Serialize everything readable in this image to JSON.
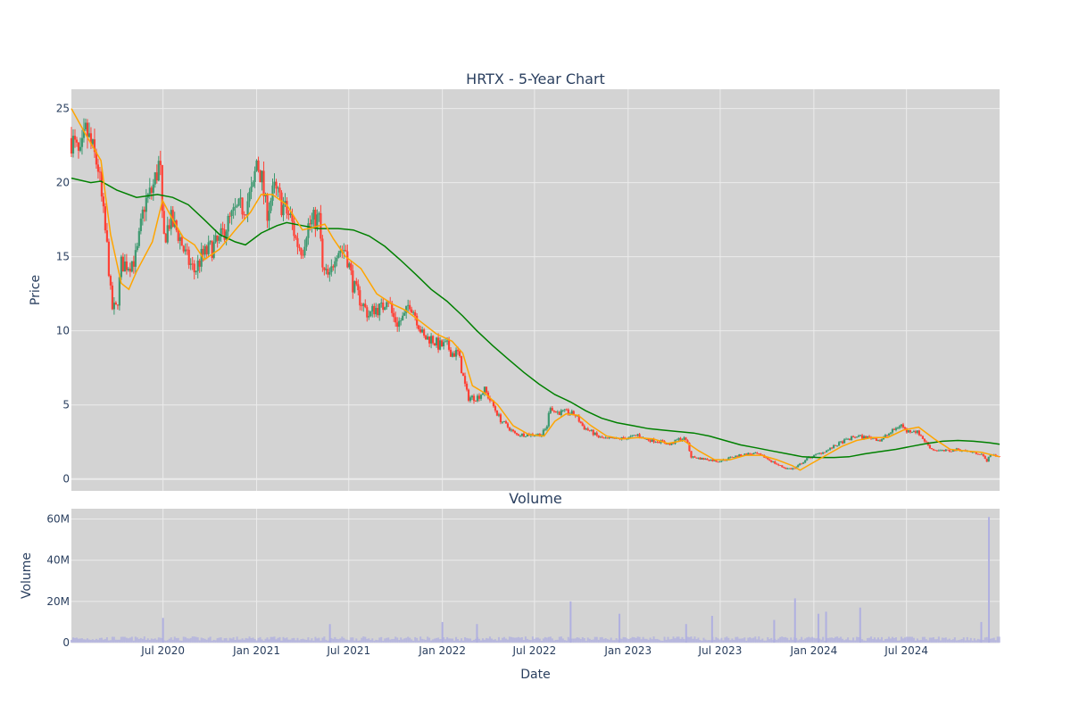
{
  "title": "HRTX - 5-Year Chart",
  "volume_title": "Volume",
  "colors": {
    "plot_bg": "#d3d3d3",
    "grid": "#ebebeb",
    "up": "#3d9970",
    "down": "#ff4136",
    "ma_short": "#ffa500",
    "ma_long": "#008000",
    "volume": "#b0b0e0",
    "text": "#2a3f5f"
  },
  "chart_data": [
    {
      "type": "candlestick",
      "title": "HRTX - 5-Year Chart",
      "ylabel": "Price",
      "ylim": [
        -0.8,
        26.3
      ],
      "yticks": [
        0,
        5,
        10,
        15,
        20,
        25
      ],
      "xlim": [
        "2020-01-03",
        "2024-12-31"
      ],
      "grid": true,
      "legend": "none",
      "price_path": [
        [
          "2020-01-03",
          23.0
        ],
        [
          "2020-01-20",
          21.5
        ],
        [
          "2020-02-01",
          23.5
        ],
        [
          "2020-02-15",
          22.0
        ],
        [
          "2020-02-25",
          21.0
        ],
        [
          "2020-03-05",
          18.0
        ],
        [
          "2020-03-15",
          15.0
        ],
        [
          "2020-03-22",
          11.5
        ],
        [
          "2020-04-01",
          11.5
        ],
        [
          "2020-04-10",
          14.5
        ],
        [
          "2020-04-25",
          14.5
        ],
        [
          "2020-05-10",
          15.0
        ],
        [
          "2020-05-25",
          18.5
        ],
        [
          "2020-06-10",
          19.5
        ],
        [
          "2020-06-25",
          21.5
        ],
        [
          "2020-07-01",
          16.0
        ],
        [
          "2020-07-15",
          17.5
        ],
        [
          "2020-08-01",
          16.5
        ],
        [
          "2020-08-15",
          15.0
        ],
        [
          "2020-09-01",
          14.0
        ],
        [
          "2020-09-15",
          15.0
        ],
        [
          "2020-10-01",
          15.5
        ],
        [
          "2020-10-20",
          16.0
        ],
        [
          "2020-11-01",
          17.0
        ],
        [
          "2020-11-20",
          18.0
        ],
        [
          "2020-12-10",
          18.5
        ],
        [
          "2020-12-25",
          19.5
        ],
        [
          "2021-01-01",
          21.5
        ],
        [
          "2021-01-10",
          20.5
        ],
        [
          "2021-01-20",
          18.0
        ],
        [
          "2021-02-05",
          19.5
        ],
        [
          "2021-02-20",
          18.5
        ],
        [
          "2021-03-10",
          17.5
        ],
        [
          "2021-03-20",
          16.0
        ],
        [
          "2021-04-01",
          15.5
        ],
        [
          "2021-04-10",
          17.0
        ],
        [
          "2021-04-25",
          17.5
        ],
        [
          "2021-05-05",
          17.5
        ],
        [
          "2021-05-10",
          14.0
        ],
        [
          "2021-05-25",
          13.5
        ],
        [
          "2021-06-05",
          15.5
        ],
        [
          "2021-06-25",
          15.5
        ],
        [
          "2021-07-10",
          13.0
        ],
        [
          "2021-07-25",
          12.0
        ],
        [
          "2021-08-10",
          11.0
        ],
        [
          "2021-08-20",
          11.5
        ],
        [
          "2021-09-05",
          11.5
        ],
        [
          "2021-09-15",
          12.5
        ],
        [
          "2021-09-25",
          11.0
        ],
        [
          "2021-10-05",
          10.5
        ],
        [
          "2021-10-20",
          11.0
        ],
        [
          "2021-10-28",
          12.0
        ],
        [
          "2021-11-10",
          11.0
        ],
        [
          "2021-11-25",
          9.5
        ],
        [
          "2021-12-10",
          9.5
        ],
        [
          "2021-12-25",
          9.0
        ],
        [
          "2022-01-10",
          9.0
        ],
        [
          "2022-01-20",
          8.5
        ],
        [
          "2022-02-01",
          8.5
        ],
        [
          "2022-02-10",
          7.0
        ],
        [
          "2022-02-20",
          5.5
        ],
        [
          "2022-03-10",
          5.5
        ],
        [
          "2022-03-25",
          6.0
        ],
        [
          "2022-04-10",
          5.0
        ],
        [
          "2022-04-25",
          4.0
        ],
        [
          "2022-05-10",
          3.5
        ],
        [
          "2022-05-25",
          3.0
        ],
        [
          "2022-06-10",
          3.0
        ],
        [
          "2022-06-25",
          3.0
        ],
        [
          "2022-07-05",
          3.0
        ],
        [
          "2022-07-15",
          3.0
        ],
        [
          "2022-07-25",
          3.5
        ],
        [
          "2022-08-01",
          5.0
        ],
        [
          "2022-08-10",
          4.5
        ],
        [
          "2022-08-20",
          4.5
        ],
        [
          "2022-09-05",
          4.5
        ],
        [
          "2022-09-20",
          4.3
        ],
        [
          "2022-10-05",
          3.5
        ],
        [
          "2022-10-20",
          3.2
        ],
        [
          "2022-11-05",
          2.8
        ],
        [
          "2022-11-20",
          2.7
        ],
        [
          "2022-12-10",
          2.7
        ],
        [
          "2023-01-05",
          2.8
        ],
        [
          "2023-01-20",
          3.0
        ],
        [
          "2023-02-01",
          2.7
        ],
        [
          "2023-02-20",
          2.6
        ],
        [
          "2023-03-10",
          2.5
        ],
        [
          "2023-03-25",
          2.3
        ],
        [
          "2023-04-10",
          2.7
        ],
        [
          "2023-04-25",
          2.7
        ],
        [
          "2023-05-05",
          1.5
        ],
        [
          "2023-05-20",
          1.4
        ],
        [
          "2023-06-10",
          1.3
        ],
        [
          "2023-06-25",
          1.2
        ],
        [
          "2023-07-10",
          1.3
        ],
        [
          "2023-07-25",
          1.5
        ],
        [
          "2023-08-10",
          1.6
        ],
        [
          "2023-08-25",
          1.7
        ],
        [
          "2023-09-10",
          1.7
        ],
        [
          "2023-09-25",
          1.5
        ],
        [
          "2023-10-10",
          1.2
        ],
        [
          "2023-10-25",
          0.9
        ],
        [
          "2023-11-10",
          0.7
        ],
        [
          "2023-11-25",
          0.7
        ],
        [
          "2023-12-05",
          1.0
        ],
        [
          "2023-12-20",
          1.4
        ],
        [
          "2024-01-10",
          1.7
        ],
        [
          "2024-01-25",
          1.9
        ],
        [
          "2024-02-10",
          2.2
        ],
        [
          "2024-02-25",
          2.5
        ],
        [
          "2024-03-10",
          2.7
        ],
        [
          "2024-03-25",
          2.9
        ],
        [
          "2024-04-10",
          2.8
        ],
        [
          "2024-04-25",
          2.8
        ],
        [
          "2024-05-10",
          2.6
        ],
        [
          "2024-05-25",
          3.0
        ],
        [
          "2024-06-10",
          3.4
        ],
        [
          "2024-06-20",
          3.7
        ],
        [
          "2024-07-01",
          3.2
        ],
        [
          "2024-07-15",
          3.3
        ],
        [
          "2024-07-25",
          3.1
        ],
        [
          "2024-08-05",
          2.6
        ],
        [
          "2024-08-20",
          2.0
        ],
        [
          "2024-09-05",
          1.9
        ],
        [
          "2024-09-25",
          1.9
        ],
        [
          "2024-10-10",
          2.0
        ],
        [
          "2024-10-25",
          1.9
        ],
        [
          "2024-11-10",
          1.8
        ],
        [
          "2024-11-25",
          1.7
        ],
        [
          "2024-12-05",
          1.2
        ],
        [
          "2024-12-15",
          1.7
        ],
        [
          "2024-12-31",
          1.5
        ]
      ],
      "ma_short": {
        "color": "#ffa500",
        "points": [
          [
            "2020-01-03",
            25.0
          ],
          [
            "2020-02-01",
            23.2
          ],
          [
            "2020-03-01",
            21.5
          ],
          [
            "2020-03-20",
            16.5
          ],
          [
            "2020-04-10",
            13.2
          ],
          [
            "2020-04-25",
            12.8
          ],
          [
            "2020-05-10",
            14.0
          ],
          [
            "2020-06-10",
            16.0
          ],
          [
            "2020-06-30",
            18.8
          ],
          [
            "2020-07-20",
            17.5
          ],
          [
            "2020-08-10",
            16.3
          ],
          [
            "2020-09-01",
            15.8
          ],
          [
            "2020-09-20",
            14.8
          ],
          [
            "2020-10-20",
            15.5
          ],
          [
            "2020-11-20",
            16.8
          ],
          [
            "2020-12-20",
            18.0
          ],
          [
            "2021-01-10",
            19.2
          ],
          [
            "2021-02-01",
            19.2
          ],
          [
            "2021-03-01",
            18.5
          ],
          [
            "2021-04-01",
            16.8
          ],
          [
            "2021-04-25",
            17.0
          ],
          [
            "2021-05-15",
            17.2
          ],
          [
            "2021-06-01",
            16.2
          ],
          [
            "2021-06-25",
            15.0
          ],
          [
            "2021-07-25",
            14.2
          ],
          [
            "2021-08-25",
            12.5
          ],
          [
            "2021-09-25",
            11.8
          ],
          [
            "2021-10-20",
            11.4
          ],
          [
            "2021-11-20",
            10.6
          ],
          [
            "2021-12-20",
            9.8
          ],
          [
            "2022-01-20",
            9.3
          ],
          [
            "2022-02-10",
            8.5
          ],
          [
            "2022-03-01",
            6.3
          ],
          [
            "2022-03-25",
            5.8
          ],
          [
            "2022-04-20",
            5.0
          ],
          [
            "2022-05-20",
            3.6
          ],
          [
            "2022-06-20",
            3.0
          ],
          [
            "2022-07-20",
            2.9
          ],
          [
            "2022-08-10",
            3.9
          ],
          [
            "2022-09-01",
            4.4
          ],
          [
            "2022-09-25",
            4.3
          ],
          [
            "2022-10-20",
            3.6
          ],
          [
            "2022-11-20",
            2.9
          ],
          [
            "2022-12-20",
            2.7
          ],
          [
            "2023-01-20",
            2.8
          ],
          [
            "2023-02-20",
            2.7
          ],
          [
            "2023-03-20",
            2.4
          ],
          [
            "2023-04-20",
            2.6
          ],
          [
            "2023-05-20",
            1.9
          ],
          [
            "2023-06-20",
            1.3
          ],
          [
            "2023-07-20",
            1.3
          ],
          [
            "2023-08-20",
            1.6
          ],
          [
            "2023-09-20",
            1.6
          ],
          [
            "2023-10-20",
            1.3
          ],
          [
            "2023-11-20",
            0.9
          ],
          [
            "2023-12-05",
            0.6
          ],
          [
            "2023-12-25",
            1.0
          ],
          [
            "2024-01-25",
            1.6
          ],
          [
            "2024-02-25",
            2.2
          ],
          [
            "2024-03-25",
            2.6
          ],
          [
            "2024-04-25",
            2.8
          ],
          [
            "2024-05-25",
            2.8
          ],
          [
            "2024-06-25",
            3.3
          ],
          [
            "2024-07-25",
            3.5
          ],
          [
            "2024-08-25",
            2.7
          ],
          [
            "2024-09-25",
            2.0
          ],
          [
            "2024-10-25",
            1.9
          ],
          [
            "2024-11-25",
            1.8
          ],
          [
            "2024-12-31",
            1.5
          ]
        ]
      },
      "ma_long": {
        "color": "#008000",
        "points": [
          [
            "2020-01-03",
            20.3
          ],
          [
            "2020-02-10",
            20.0
          ],
          [
            "2020-03-01",
            20.1
          ],
          [
            "2020-04-01",
            19.5
          ],
          [
            "2020-05-10",
            19.0
          ],
          [
            "2020-06-20",
            19.2
          ],
          [
            "2020-07-20",
            19.0
          ],
          [
            "2020-08-20",
            18.5
          ],
          [
            "2020-09-20",
            17.5
          ],
          [
            "2020-10-20",
            16.5
          ],
          [
            "2020-11-20",
            16.0
          ],
          [
            "2020-12-10",
            15.8
          ],
          [
            "2021-01-10",
            16.6
          ],
          [
            "2021-02-10",
            17.1
          ],
          [
            "2021-03-01",
            17.3
          ],
          [
            "2021-04-01",
            17.1
          ],
          [
            "2021-05-01",
            16.9
          ],
          [
            "2021-06-10",
            16.9
          ],
          [
            "2021-07-10",
            16.8
          ],
          [
            "2021-08-10",
            16.4
          ],
          [
            "2021-09-10",
            15.7
          ],
          [
            "2021-10-10",
            14.8
          ],
          [
            "2021-11-10",
            13.8
          ],
          [
            "2021-12-10",
            12.8
          ],
          [
            "2022-01-10",
            12.0
          ],
          [
            "2022-02-10",
            11.0
          ],
          [
            "2022-03-10",
            10.0
          ],
          [
            "2022-04-10",
            9.0
          ],
          [
            "2022-05-10",
            8.1
          ],
          [
            "2022-06-10",
            7.2
          ],
          [
            "2022-07-10",
            6.4
          ],
          [
            "2022-08-10",
            5.7
          ],
          [
            "2022-09-10",
            5.2
          ],
          [
            "2022-10-10",
            4.6
          ],
          [
            "2022-11-10",
            4.1
          ],
          [
            "2022-12-10",
            3.8
          ],
          [
            "2023-01-10",
            3.6
          ],
          [
            "2023-02-10",
            3.4
          ],
          [
            "2023-03-10",
            3.3
          ],
          [
            "2023-04-10",
            3.2
          ],
          [
            "2023-05-10",
            3.1
          ],
          [
            "2023-06-10",
            2.9
          ],
          [
            "2023-07-10",
            2.6
          ],
          [
            "2023-08-10",
            2.3
          ],
          [
            "2023-09-10",
            2.1
          ],
          [
            "2023-10-10",
            1.9
          ],
          [
            "2023-11-10",
            1.7
          ],
          [
            "2023-12-10",
            1.5
          ],
          [
            "2024-01-10",
            1.45
          ],
          [
            "2024-02-10",
            1.45
          ],
          [
            "2024-03-10",
            1.5
          ],
          [
            "2024-04-10",
            1.7
          ],
          [
            "2024-05-10",
            1.85
          ],
          [
            "2024-06-10",
            2.0
          ],
          [
            "2024-07-10",
            2.2
          ],
          [
            "2024-08-10",
            2.4
          ],
          [
            "2024-09-10",
            2.55
          ],
          [
            "2024-10-10",
            2.6
          ],
          [
            "2024-11-10",
            2.55
          ],
          [
            "2024-12-10",
            2.45
          ],
          [
            "2024-12-31",
            2.35
          ]
        ]
      }
    },
    {
      "type": "bar",
      "title": "Volume",
      "ylabel": "Volume",
      "xlabel": "Date",
      "ylim": [
        0,
        65000000
      ],
      "yticks": [
        0,
        20000000,
        40000000,
        60000000
      ],
      "ytick_labels": [
        "0",
        "20M",
        "40M",
        "60M"
      ],
      "x_ticks": [
        {
          "date": "2020-07-01",
          "label": "Jul 2020"
        },
        {
          "date": "2021-01-01",
          "label": "Jan 2021"
        },
        {
          "date": "2021-07-01",
          "label": "Jul 2021"
        },
        {
          "date": "2022-01-01",
          "label": "Jan 2022"
        },
        {
          "date": "2022-07-01",
          "label": "Jul 2022"
        },
        {
          "date": "2023-01-01",
          "label": "Jan 2023"
        },
        {
          "date": "2023-07-01",
          "label": "Jul 2023"
        },
        {
          "date": "2024-01-01",
          "label": "Jan 2024"
        },
        {
          "date": "2024-07-01",
          "label": "Jul 2024"
        }
      ],
      "baseline_volume": 1500000,
      "spikes": [
        [
          "2020-07-01",
          12000000
        ],
        [
          "2021-05-25",
          9000000
        ],
        [
          "2022-01-01",
          10000000
        ],
        [
          "2022-03-10",
          9000000
        ],
        [
          "2022-09-10",
          20000000
        ],
        [
          "2022-12-15",
          14000000
        ],
        [
          "2023-04-25",
          9000000
        ],
        [
          "2023-06-15",
          13000000
        ],
        [
          "2023-10-15",
          11000000
        ],
        [
          "2023-11-25",
          21500000
        ],
        [
          "2024-01-10",
          14000000
        ],
        [
          "2024-01-25",
          15000000
        ],
        [
          "2024-04-01",
          17000000
        ],
        [
          "2024-11-25",
          10000000
        ],
        [
          "2024-12-10",
          61000000
        ]
      ]
    }
  ]
}
